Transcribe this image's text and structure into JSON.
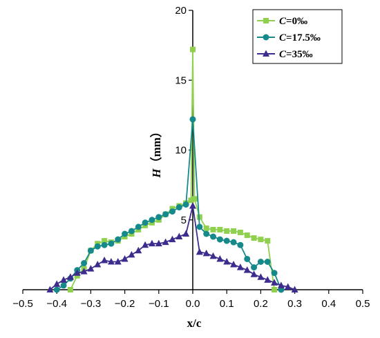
{
  "chart_data": {
    "type": "line",
    "title": "",
    "xlabel": "x/c",
    "ylabel": "H（mm）",
    "ylabel_parts": {
      "var": "H",
      "unit": "（mm）"
    },
    "xlim": [
      -0.5,
      0.5
    ],
    "ylim": [
      0,
      20
    ],
    "xticks": [
      "−0.5",
      "−0.4",
      "−0.3",
      "−0.2",
      "−0.1",
      "0.0",
      "0.1",
      "0.2",
      "0.3",
      "0.4",
      "0.5"
    ],
    "xtick_values": [
      -0.5,
      -0.4,
      -0.3,
      -0.2,
      -0.1,
      0.0,
      0.1,
      0.2,
      0.3,
      0.4,
      0.5
    ],
    "yticks": [
      "5",
      "10",
      "15",
      "20"
    ],
    "ytick_values": [
      5,
      10,
      15,
      20
    ],
    "grid": false,
    "legend_position": "top-right",
    "series": [
      {
        "name": "C=0‰",
        "name_parts": {
          "var": "C",
          "rest": "=0‰"
        },
        "color": "#8fd14f",
        "marker": "square",
        "x": [
          -0.36,
          -0.34,
          -0.32,
          -0.3,
          -0.28,
          -0.26,
          -0.24,
          -0.22,
          -0.2,
          -0.18,
          -0.16,
          -0.14,
          -0.12,
          -0.1,
          -0.08,
          -0.06,
          -0.04,
          -0.02,
          -0.005,
          0.0,
          0.005,
          0.02,
          0.04,
          0.06,
          0.08,
          0.1,
          0.12,
          0.14,
          0.16,
          0.18,
          0.2,
          0.22,
          0.24
        ],
        "y": [
          0,
          1.0,
          1.5,
          2.8,
          3.3,
          3.5,
          3.4,
          3.5,
          3.8,
          4.0,
          4.3,
          4.6,
          4.8,
          5.0,
          5.4,
          5.8,
          6.0,
          6.2,
          6.4,
          17.2,
          6.5,
          5.2,
          4.4,
          4.3,
          4.3,
          4.2,
          4.2,
          4.1,
          3.9,
          3.7,
          3.6,
          3.5,
          0
        ]
      },
      {
        "name": "C=17.5‰",
        "name_parts": {
          "var": "C",
          "rest": "=17.5‰"
        },
        "color": "#168a8a",
        "marker": "circle",
        "x": [
          -0.4,
          -0.38,
          -0.36,
          -0.34,
          -0.32,
          -0.3,
          -0.28,
          -0.26,
          -0.24,
          -0.22,
          -0.2,
          -0.18,
          -0.16,
          -0.14,
          -0.12,
          -0.1,
          -0.08,
          -0.06,
          -0.04,
          -0.02,
          0.0,
          0.02,
          0.04,
          0.06,
          0.08,
          0.1,
          0.12,
          0.14,
          0.16,
          0.18,
          0.2,
          0.22,
          0.24,
          0.26
        ],
        "y": [
          0,
          0.3,
          0.8,
          1.4,
          1.9,
          2.8,
          3.1,
          3.2,
          3.3,
          3.6,
          4.0,
          4.2,
          4.5,
          4.8,
          5.0,
          5.2,
          5.4,
          5.6,
          5.9,
          6.1,
          12.2,
          4.5,
          4.0,
          3.8,
          3.6,
          3.5,
          3.4,
          3.2,
          2.2,
          1.6,
          2.0,
          2.0,
          1.2,
          0
        ]
      },
      {
        "name": "C=35‰",
        "name_parts": {
          "var": "C",
          "rest": "=35‰"
        },
        "color": "#3d2c8d",
        "marker": "triangle",
        "x": [
          -0.42,
          -0.4,
          -0.38,
          -0.36,
          -0.34,
          -0.32,
          -0.3,
          -0.28,
          -0.26,
          -0.24,
          -0.22,
          -0.2,
          -0.18,
          -0.16,
          -0.14,
          -0.12,
          -0.1,
          -0.08,
          -0.06,
          -0.04,
          -0.02,
          0.0,
          0.02,
          0.04,
          0.06,
          0.08,
          0.1,
          0.12,
          0.14,
          0.16,
          0.18,
          0.2,
          0.22,
          0.24,
          0.26,
          0.28,
          0.3
        ],
        "y": [
          0,
          0.4,
          0.7,
          0.9,
          1.2,
          1.3,
          1.5,
          1.8,
          2.1,
          2.0,
          2.0,
          2.2,
          2.5,
          2.8,
          3.2,
          3.3,
          3.3,
          3.4,
          3.6,
          3.8,
          4.0,
          6.0,
          2.7,
          2.6,
          2.4,
          2.2,
          2.0,
          1.8,
          1.6,
          1.4,
          1.1,
          0.9,
          0.7,
          0.5,
          0.3,
          0.2,
          0
        ]
      }
    ]
  }
}
